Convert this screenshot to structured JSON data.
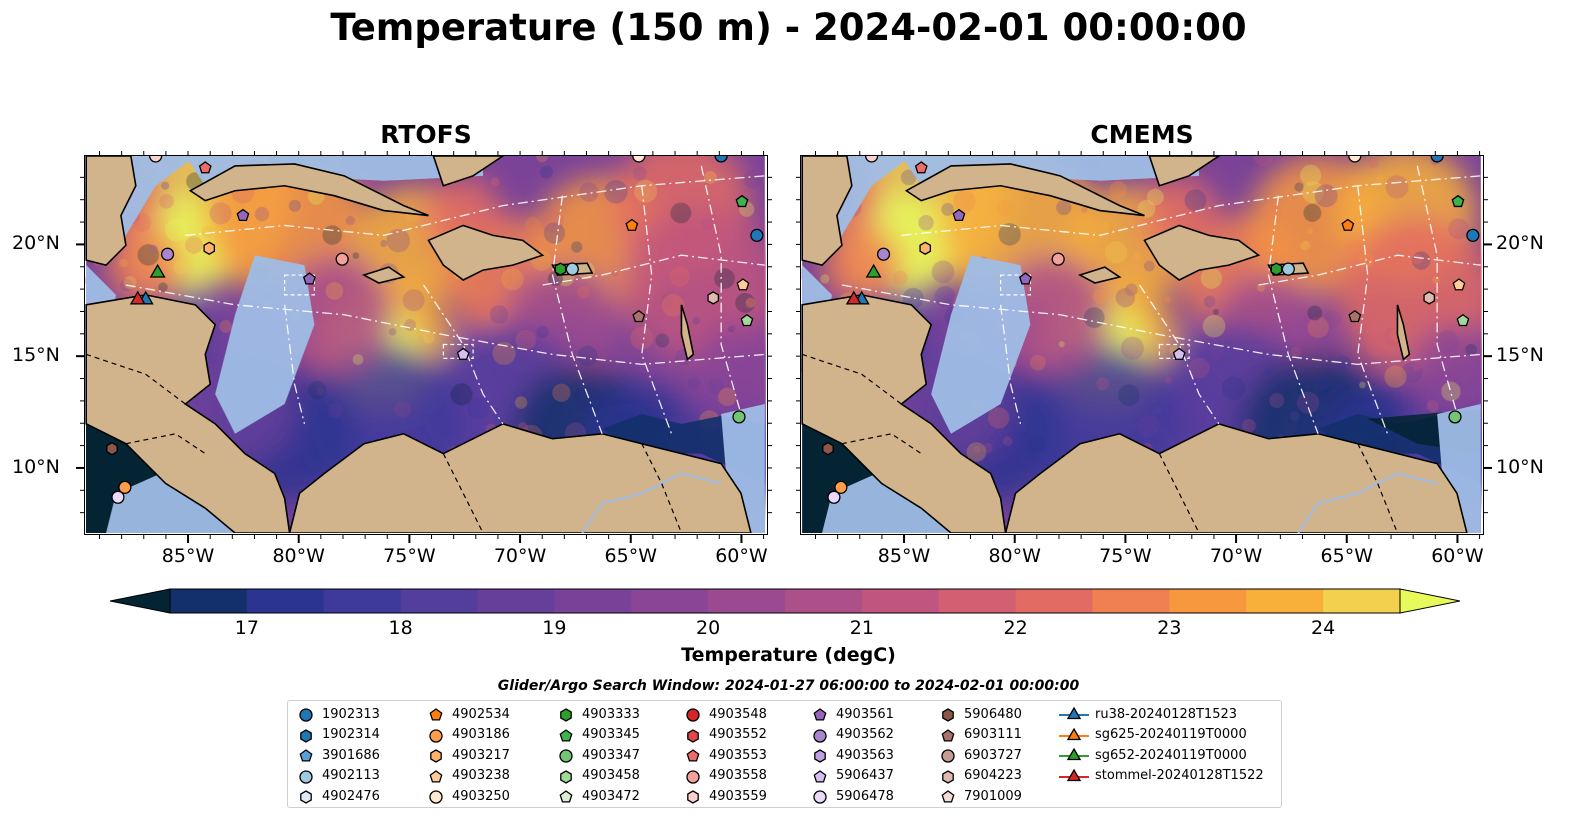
{
  "title": "Temperature (150 m) - 2024-02-01 00:00:00",
  "chart_data": [
    {
      "type": "heatmap",
      "title": "RTOFS",
      "x_ticks": [
        "85°W",
        "80°W",
        "75°W",
        "70°W",
        "65°W",
        "60°W"
      ],
      "y_ticks": [
        "20°N",
        "15°N",
        "10°N"
      ],
      "xlim": [
        -89.7,
        -58.8
      ],
      "ylim": [
        7.0,
        24.0
      ]
    },
    {
      "type": "heatmap",
      "title": "CMEMS",
      "x_ticks": [
        "85°W",
        "80°W",
        "75°W",
        "70°W",
        "65°W",
        "60°W"
      ],
      "y_ticks": [
        "20°N",
        "15°N",
        "10°N"
      ],
      "xlim": [
        -89.7,
        -58.8
      ],
      "ylim": [
        7.0,
        24.0
      ]
    }
  ],
  "colorbar": {
    "label": "Temperature (degC)",
    "min": 16.5,
    "max": 24.5,
    "step": 0.5,
    "extend": "both",
    "ticks": [
      "17",
      "18",
      "19",
      "20",
      "21",
      "22",
      "23",
      "24"
    ],
    "colors": [
      "#042333",
      "#13306c",
      "#2b3490",
      "#3d3a9c",
      "#533d9d",
      "#663f9b",
      "#794298",
      "#8a4596",
      "#9b4a91",
      "#ad4f89",
      "#c0557f",
      "#d35f72",
      "#e26b63",
      "#f07f52",
      "#f7983f",
      "#f8b03b",
      "#f4d04f",
      "#e8fa5b"
    ]
  },
  "search_window": "Glider/Argo Search Window: 2024-01-27 06:00:00 to 2024-02-01 00:00:00",
  "legend": [
    {
      "label": "1902313",
      "marker": "circle",
      "color": "#1f77b4"
    },
    {
      "label": "1902314",
      "marker": "hexagon",
      "color": "#1f77b4"
    },
    {
      "label": "3901686",
      "marker": "pentagon",
      "color": "#5aa0d8"
    },
    {
      "label": "4902113",
      "marker": "circle",
      "color": "#9ecae1"
    },
    {
      "label": "4902476",
      "marker": "hexagon",
      "color": "#deebf7"
    },
    {
      "label": "4902534",
      "marker": "pentagon",
      "color": "#ff7f0e"
    },
    {
      "label": "4903186",
      "marker": "circle",
      "color": "#ff9e4a"
    },
    {
      "label": "4903217",
      "marker": "hexagon",
      "color": "#ffb36b"
    },
    {
      "label": "4903238",
      "marker": "pentagon",
      "color": "#ffcc99"
    },
    {
      "label": "4903250",
      "marker": "circle",
      "color": "#ffe8d1"
    },
    {
      "label": "4903333",
      "marker": "hexagon",
      "color": "#2ca02c"
    },
    {
      "label": "4903345",
      "marker": "pentagon",
      "color": "#3cb44b"
    },
    {
      "label": "4903347",
      "marker": "circle",
      "color": "#74c476"
    },
    {
      "label": "4903458",
      "marker": "hexagon",
      "color": "#a1d99b"
    },
    {
      "label": "4903472",
      "marker": "pentagon",
      "color": "#d9f0d3"
    },
    {
      "label": "4903548",
      "marker": "circle",
      "color": "#d62728"
    },
    {
      "label": "4903552",
      "marker": "hexagon",
      "color": "#e0484a"
    },
    {
      "label": "4903553",
      "marker": "pentagon",
      "color": "#ec6b6b"
    },
    {
      "label": "4903558",
      "marker": "circle",
      "color": "#f4a09b"
    },
    {
      "label": "4903559",
      "marker": "hexagon",
      "color": "#fcd0cc"
    },
    {
      "label": "4903561",
      "marker": "pentagon",
      "color": "#9467bd"
    },
    {
      "label": "4903562",
      "marker": "circle",
      "color": "#a985cf"
    },
    {
      "label": "4903563",
      "marker": "hexagon",
      "color": "#bfa0e0"
    },
    {
      "label": "5906437",
      "marker": "pentagon",
      "color": "#d6bdf0"
    },
    {
      "label": "5906478",
      "marker": "circle",
      "color": "#ead9fb"
    },
    {
      "label": "5906480",
      "marker": "hexagon",
      "color": "#8c564b"
    },
    {
      "label": "6903111",
      "marker": "pentagon",
      "color": "#a9736a"
    },
    {
      "label": "6903727",
      "marker": "circle",
      "color": "#c49c94"
    },
    {
      "label": "6904223",
      "marker": "hexagon",
      "color": "#e0b9b0"
    },
    {
      "label": "7901009",
      "marker": "pentagon",
      "color": "#f4dcd6"
    },
    {
      "label": "ru38-20240128T1523",
      "marker": "triangle",
      "color": "#1f77b4"
    },
    {
      "label": "sg625-20240119T0000",
      "marker": "triangle",
      "color": "#ff7f0e"
    },
    {
      "label": "sg652-20240119T0000",
      "marker": "triangle",
      "color": "#2ca02c"
    },
    {
      "label": "stommel-20240128T1522",
      "marker": "triangle",
      "color": "#d62728"
    }
  ],
  "colors": {
    "land": "#d2b48c",
    "shallow_water": "#9fbde6",
    "deep_cold": "#042333"
  }
}
